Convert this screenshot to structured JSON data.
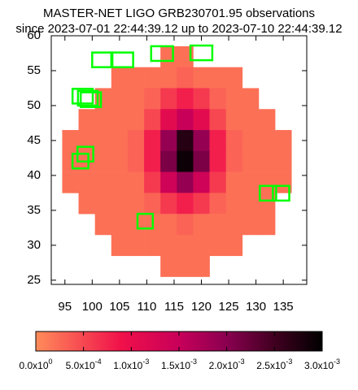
{
  "chart_data": {
    "type": "heatmap",
    "title": "MASTER-NET LIGO GRB230701.95 observations",
    "subtitle": "since 2023-07-01 22:44:39.12 up to 2023-07-10 22:44:39.12",
    "xlim": [
      92.5,
      139.3
    ],
    "ylim": [
      24.4,
      60
    ],
    "xticks": [
      95,
      100,
      105,
      110,
      115,
      120,
      125,
      130,
      135
    ],
    "yticks": [
      25,
      30,
      35,
      40,
      45,
      50,
      55,
      60
    ],
    "heat": {
      "x": [
        96,
        99,
        102,
        105,
        108,
        111,
        114,
        117,
        120,
        123,
        126,
        129,
        132,
        135
      ],
      "y": [
        57,
        54,
        51,
        48,
        45,
        42,
        39,
        36,
        33,
        30,
        27
      ],
      "values": [
        [
          null,
          null,
          null,
          null,
          null,
          null,
          0.0002,
          0.0002,
          null,
          null,
          null,
          null,
          null,
          null
        ],
        [
          null,
          null,
          null,
          0.0002,
          0.0002,
          0.0002,
          0.0002,
          0.0003,
          0.0002,
          0.0002,
          0.0002,
          null,
          null,
          null
        ],
        [
          null,
          null,
          0.0002,
          0.0002,
          0.0002,
          0.0003,
          0.0006,
          0.0008,
          0.0006,
          0.0003,
          0.0002,
          0.0002,
          null,
          null
        ],
        [
          null,
          0.0002,
          0.0002,
          0.0002,
          0.0002,
          0.0005,
          0.0011,
          0.0015,
          0.0011,
          0.0005,
          0.0002,
          0.0002,
          0.0002,
          null
        ],
        [
          0.0002,
          0.0002,
          0.0002,
          0.0002,
          0.0003,
          0.0008,
          0.0019,
          0.0027,
          0.0019,
          0.0008,
          0.0003,
          0.0002,
          0.0002,
          0.0002
        ],
        [
          0.0002,
          0.0002,
          0.0002,
          0.0002,
          0.0003,
          0.0008,
          0.0021,
          0.0029,
          0.0021,
          0.0008,
          0.0003,
          0.0002,
          0.0002,
          0.0002
        ],
        [
          0.0002,
          0.0002,
          0.0002,
          0.0002,
          0.0002,
          0.0006,
          0.0014,
          0.0019,
          0.0014,
          0.0006,
          0.0002,
          0.0002,
          0.0002,
          0.0002
        ],
        [
          null,
          0.0002,
          0.0002,
          0.0002,
          0.0002,
          0.0003,
          0.0006,
          0.0008,
          0.0006,
          0.0003,
          0.0002,
          0.0002,
          0.0002,
          null
        ],
        [
          null,
          null,
          0.0002,
          0.0002,
          0.0002,
          0.0002,
          0.0002,
          0.0003,
          0.0002,
          0.0002,
          0.0002,
          0.0002,
          0.0002,
          null
        ],
        [
          null,
          null,
          null,
          0.0002,
          0.0002,
          0.0002,
          0.0002,
          0.0002,
          0.0002,
          0.0002,
          0.0002,
          null,
          null,
          null
        ],
        [
          null,
          null,
          null,
          null,
          null,
          null,
          0.0002,
          0.0002,
          0.0002,
          null,
          null,
          null,
          null,
          null
        ]
      ]
    },
    "fields_color": "#00ff00",
    "fields": [
      {
        "x": [
          100.0,
          103.7
        ],
        "y": [
          55.5,
          57.6
        ]
      },
      {
        "x": [
          103.5,
          107.5
        ],
        "y": [
          55.5,
          57.6
        ]
      },
      {
        "x": [
          110.8,
          114.8
        ],
        "y": [
          56.4,
          58.5
        ]
      },
      {
        "x": [
          118.0,
          122.0
        ],
        "y": [
          56.5,
          58.6
        ]
      },
      {
        "x": [
          96.4,
          100.1
        ],
        "y": [
          50.3,
          52.4
        ]
      },
      {
        "x": [
          97.4,
          101.0
        ],
        "y": [
          50.0,
          52.1
        ]
      },
      {
        "x": [
          97.9,
          101.6
        ],
        "y": [
          49.8,
          51.9
        ]
      },
      {
        "x": [
          97.3,
          100.2
        ],
        "y": [
          42.0,
          44.1
        ]
      },
      {
        "x": [
          96.4,
          99.3
        ],
        "y": [
          41.0,
          43.1
        ]
      },
      {
        "x": [
          130.7,
          133.7
        ],
        "y": [
          36.4,
          38.5
        ]
      },
      {
        "x": [
          133.1,
          136.1
        ],
        "y": [
          36.4,
          38.5
        ]
      },
      {
        "x": [
          108.3,
          111.1
        ],
        "y": [
          32.4,
          34.5
        ]
      }
    ],
    "clim": [
      0,
      0.003
    ],
    "colormap": [
      {
        "value": 0,
        "color": "#ff8c5a"
      },
      {
        "value": 0.0009,
        "color": "#f0104a"
      },
      {
        "value": 0.0015,
        "color": "#c8005a"
      },
      {
        "value": 0.002,
        "color": "#8a0050"
      },
      {
        "value": 0.0025,
        "color": "#400020"
      },
      {
        "value": 0.003,
        "color": "#000000"
      }
    ],
    "cticks": [
      {
        "value": 0,
        "label": "0.0x10",
        "exponent": "0"
      },
      {
        "value": 0.0005,
        "label": "5.0x10",
        "exponent": "-4"
      },
      {
        "value": 0.001,
        "label": "1.0x10",
        "exponent": "-3"
      },
      {
        "value": 0.0015,
        "label": "1.5x10",
        "exponent": "-3"
      },
      {
        "value": 0.002,
        "label": "2.0x10",
        "exponent": "-3"
      },
      {
        "value": 0.0025,
        "label": "2.5x10",
        "exponent": "-3"
      },
      {
        "value": 0.003,
        "label": "3.0x10",
        "exponent": "-3"
      }
    ]
  }
}
